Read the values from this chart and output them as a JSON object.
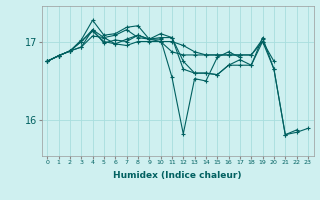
{
  "xlabel": "Humidex (Indice chaleur)",
  "background_color": "#cff0f0",
  "line_color": "#006060",
  "grid_color": "#a8dede",
  "xlim": [
    -0.5,
    23.5
  ],
  "ylim": [
    15.55,
    17.45
  ],
  "yticks": [
    16,
    17
  ],
  "xticks": [
    0,
    1,
    2,
    3,
    4,
    5,
    6,
    7,
    8,
    9,
    10,
    11,
    12,
    13,
    14,
    15,
    16,
    17,
    18,
    19,
    20,
    21,
    22,
    23
  ],
  "series": [
    [
      16.75,
      16.82,
      16.88,
      16.93,
      17.07,
      17.05,
      16.97,
      16.95,
      17.0,
      17.0,
      17.0,
      17.0,
      16.95,
      16.87,
      16.83,
      16.83,
      16.83,
      16.83,
      16.83,
      17.03,
      null,
      null,
      null,
      null
    ],
    [
      16.75,
      16.82,
      16.88,
      16.93,
      17.15,
      17.05,
      17.08,
      17.15,
      17.05,
      17.03,
      17.0,
      16.87,
      16.83,
      16.83,
      16.83,
      16.83,
      16.83,
      16.83,
      16.83,
      17.0,
      16.75,
      null,
      null,
      null
    ],
    [
      16.75,
      16.82,
      16.88,
      17.0,
      17.15,
      16.98,
      17.02,
      17.0,
      17.08,
      17.03,
      17.03,
      16.55,
      15.83,
      16.53,
      16.5,
      16.8,
      16.87,
      16.8,
      null,
      null,
      null,
      null,
      null,
      null
    ],
    [
      16.75,
      16.82,
      16.88,
      17.02,
      17.27,
      17.08,
      17.1,
      17.18,
      17.2,
      17.03,
      17.1,
      17.05,
      16.65,
      16.6,
      16.6,
      16.58,
      16.7,
      16.77,
      16.7,
      17.05,
      16.65,
      15.82,
      15.88,
      null
    ],
    [
      16.75,
      16.82,
      16.88,
      17.0,
      17.13,
      17.0,
      16.97,
      17.03,
      17.08,
      17.03,
      17.05,
      17.05,
      16.75,
      16.6,
      16.6,
      16.58,
      16.7,
      16.7,
      16.7,
      17.0,
      16.65,
      15.82,
      15.85,
      15.9
    ]
  ]
}
